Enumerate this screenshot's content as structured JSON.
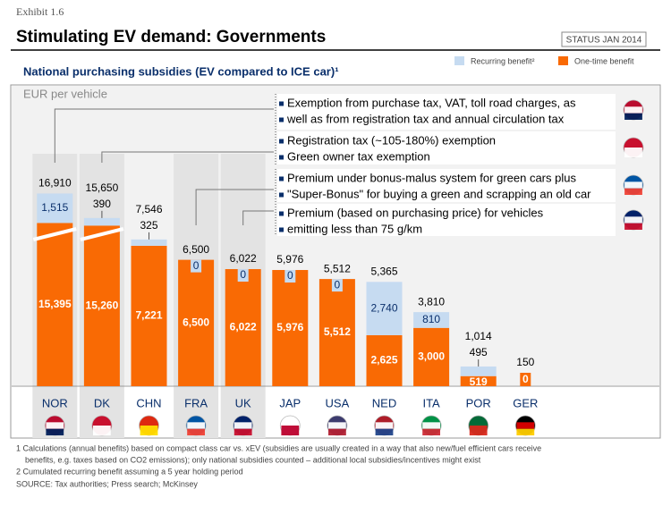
{
  "exhibit": "Exhibit 1.6",
  "title": "Stimulating EV demand: Governments",
  "status": "STATUS JAN 2014",
  "chart_data": {
    "type": "bar",
    "subtitle": "National purchasing subsidies (EV compared to ICE car)¹",
    "unit_label": "EUR per vehicle",
    "categories": [
      "NOR",
      "DK",
      "CHN",
      "FRA",
      "UK",
      "JAP",
      "USA",
      "NED",
      "ITA",
      "POR",
      "GER"
    ],
    "highlight": [
      true,
      true,
      false,
      true,
      true,
      false,
      false,
      false,
      false,
      false,
      false
    ],
    "series": [
      {
        "name": "One-time benefit",
        "color": "#f96a04",
        "values": [
          15395,
          15260,
          7221,
          6500,
          6022,
          5976,
          5512,
          2625,
          3000,
          519,
          0
        ],
        "value_labels": [
          "15,395",
          "15,260",
          "7,221",
          "6,500",
          "6,022",
          "5,976",
          "5,512",
          "2,625",
          "3,000",
          "519",
          "0"
        ]
      },
      {
        "name": "Recurring benefit²",
        "color": "#c6dbf1",
        "values": [
          1515,
          390,
          325,
          0,
          0,
          0,
          0,
          2740,
          810,
          495,
          null
        ],
        "value_labels": [
          "1,515",
          "390",
          "325",
          "0",
          "0",
          "0",
          "0",
          "2,740",
          "810",
          "495",
          null
        ]
      }
    ],
    "totals": [
      16910,
      15650,
      7546,
      6500,
      6022,
      5976,
      5512,
      5365,
      3810,
      1014,
      150
    ],
    "total_labels": [
      "16,910",
      "15,650",
      "7,546",
      "6,500",
      "6,022",
      "5,976",
      "5,512",
      "5,365",
      "3,810",
      "1,014",
      "150"
    ],
    "ylim": [
      0,
      8000
    ],
    "axis_break": [
      8000,
      15000
    ],
    "annotations": [
      [
        "Exemption from purchase tax, VAT, toll road charges, as",
        "well as from registration tax and annual circulation tax"
      ],
      [
        "Registration tax (~105-180%) exemption",
        "Green owner tax exemption"
      ],
      [
        "Premium under bonus-malus system for green cars plus",
        "\"Super-Bonus\" for buying a green and scrapping an old car"
      ],
      [
        "Premium (based on purchasing price) for vehicles",
        "emitting less than 75 g/km"
      ]
    ]
  },
  "footnotes": [
    "1 Calculations (annual benefits) based on compact class car vs. xEV (subsidies are usually created in a way that also new/fuel efficient cars receive",
    "benefits, e.g. taxes based on CO2 emissions); only national subsidies counted – additional local subsidies/incentives might exist",
    "2 Cumulated recurring benefit assuming a 5 year holding period",
    "SOURCE: Tax authorities; Press search; McKinsey"
  ]
}
